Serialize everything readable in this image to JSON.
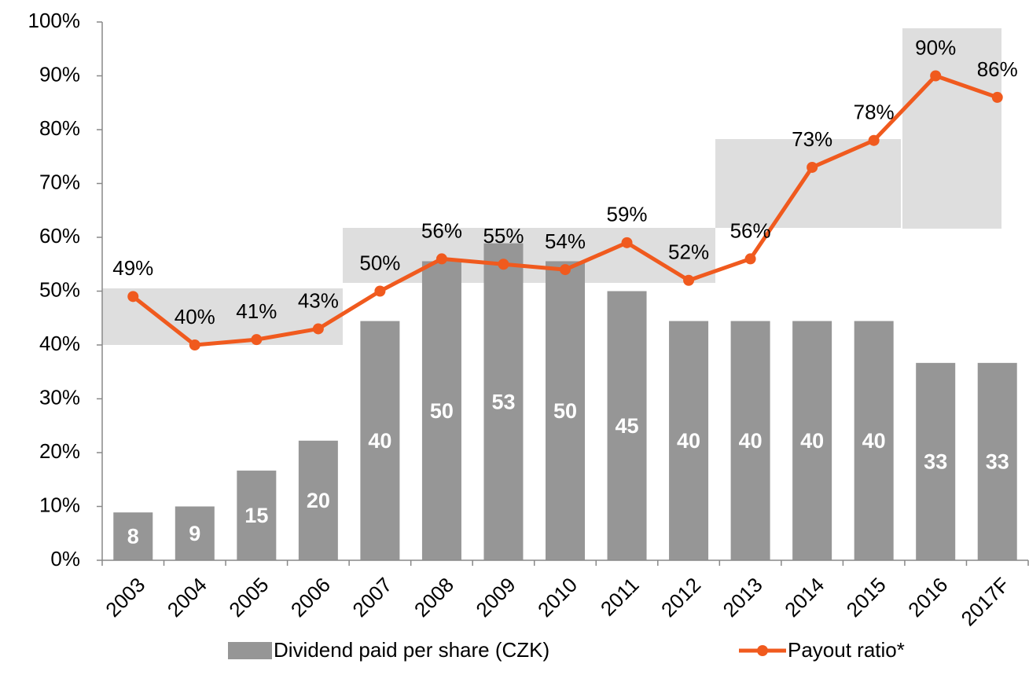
{
  "chart_data": {
    "type": "bar_line",
    "categories": [
      "2003",
      "2004",
      "2005",
      "2006",
      "2007",
      "2008",
      "2009",
      "2010",
      "2011",
      "2012",
      "2013",
      "2014",
      "2015",
      "2016",
      "2017F"
    ],
    "series": [
      {
        "name": "Dividend paid per share (CZK)",
        "type": "bar",
        "axis": "y2",
        "color": "#969696",
        "values": [
          8,
          9,
          15,
          20,
          40,
          50,
          53,
          50,
          45,
          40,
          40,
          40,
          40,
          33,
          33
        ]
      },
      {
        "name": "Payout ratio*",
        "type": "line",
        "color": "#f05a1e",
        "values": [
          49,
          40,
          41,
          43,
          50,
          56,
          55,
          54,
          59,
          52,
          56,
          73,
          78,
          90,
          86
        ],
        "value_labels": [
          "49%",
          "40%",
          "41%",
          "43%",
          "50%",
          "56%",
          "55%",
          "54%",
          "59%",
          "52%",
          "56%",
          "73%",
          "78%",
          "90%",
          "86%"
        ]
      }
    ],
    "ylim": [
      0,
      100
    ],
    "yticks": [
      {
        "value": 0,
        "label": "0%"
      },
      {
        "value": 10,
        "label": "10%"
      },
      {
        "value": 20,
        "label": "20%"
      },
      {
        "value": 30,
        "label": "30%"
      },
      {
        "value": 40,
        "label": "40%"
      },
      {
        "value": 50,
        "label": "50%"
      },
      {
        "value": 60,
        "label": "60%"
      },
      {
        "value": 70,
        "label": "70%"
      },
      {
        "value": 80,
        "label": "80%"
      },
      {
        "value": 90,
        "label": "90%"
      },
      {
        "value": 100,
        "label": "100%"
      }
    ],
    "y2lim": [
      0,
      90
    ],
    "legend": "bottom"
  }
}
